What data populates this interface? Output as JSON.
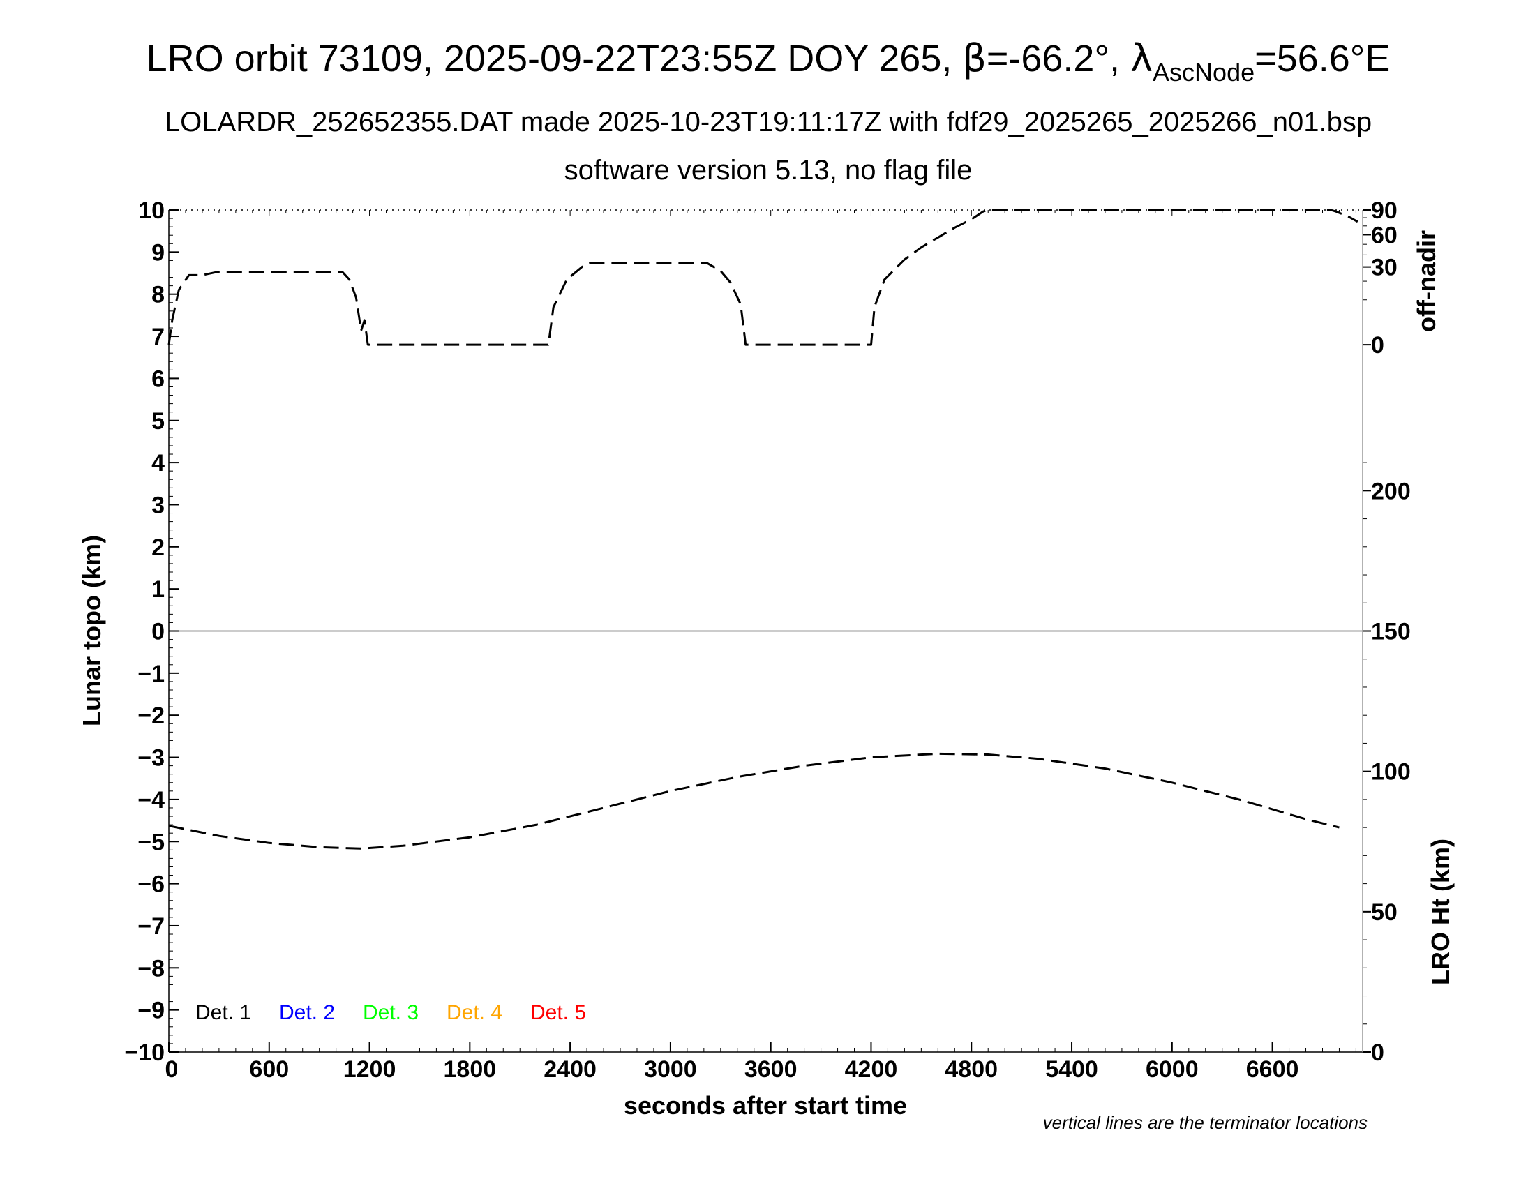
{
  "title": {
    "main_pre": "LRO orbit 73109, 2025-09-22T23:55Z DOY 265, ",
    "beta_symbol": "β",
    "beta_value": "=-66.2°, ",
    "lambda_symbol": "λ",
    "lambda_sub": "AscNode",
    "lambda_value": "=56.6°E",
    "line2": "LOLARDR_252652355.DAT made 2025-10-23T19:11:17Z with fdf29_2025265_2025266_n01.bsp",
    "line3": "software version 5.13, no flag file"
  },
  "footnote": "vertical lines are the terminator locations",
  "chart_data": {
    "type": "line",
    "xlabel": "seconds after start time",
    "xlim": [
      0,
      7140
    ],
    "x_ticks": [
      0,
      600,
      1200,
      1800,
      2400,
      3000,
      3600,
      4200,
      4800,
      5400,
      6000,
      6600
    ],
    "left_axis": {
      "label": "Lunar topo (km)",
      "ylim": [
        -10,
        10
      ],
      "ticks": [
        10,
        9,
        8,
        7,
        6,
        5,
        4,
        3,
        2,
        1,
        0,
        -1,
        -2,
        -3,
        -4,
        -5,
        -6,
        -7,
        -8,
        -9,
        -10
      ],
      "tick_labels": [
        "10",
        "9",
        "8",
        "7",
        "6",
        "5",
        "4",
        "3",
        "2",
        "1",
        "0",
        "−1",
        "−2",
        "−3",
        "−4",
        "−5",
        "−6",
        "−7",
        "−8",
        "−9",
        "−10"
      ]
    },
    "off_nadir_axis": {
      "label": "off-nadir",
      "ticks": [
        90,
        60,
        30,
        0
      ],
      "tick_labels": [
        "90",
        "60",
        "30",
        "0"
      ]
    },
    "lro_ht_axis": {
      "label": "LRO Ht (km)",
      "ylim": [
        0,
        300
      ],
      "ticks": [
        200,
        150,
        100,
        50,
        0
      ],
      "tick_labels": [
        "200",
        "150",
        "100",
        "50",
        "0"
      ]
    },
    "legend": {
      "placement": "bottom-left",
      "entries": [
        {
          "label": "Det. 1",
          "color": "#000000"
        },
        {
          "label": "Det. 2",
          "color": "#0000ff"
        },
        {
          "label": "Det. 3",
          "color": "#00ff00"
        },
        {
          "label": "Det. 4",
          "color": "#ffa500"
        },
        {
          "label": "Det. 5",
          "color": "#ff0000"
        }
      ]
    },
    "series": [
      {
        "color": "#000000",
        "style": "dashed",
        "axis": "off-nadir",
        "x": [
          0,
          20,
          60,
          120,
          200,
          240,
          280,
          600,
          1040,
          1080,
          1120,
          1150,
          1170,
          1190,
          1250,
          1800,
          2270,
          2300,
          2380,
          2480,
          2520,
          2600,
          3000,
          3220,
          3300,
          3360,
          3420,
          3450,
          3600,
          4000,
          4200,
          4220,
          4280,
          4400,
          4500,
          4600,
          4700,
          4800,
          4870,
          4900,
          5050,
          6600,
          6950,
          6980,
          7050,
          7110
        ],
        "y": [
          0,
          3,
          15,
          24,
          24,
          25,
          26,
          26,
          26,
          21,
          11,
          1,
          3,
          0,
          0,
          0,
          0,
          7,
          21,
          31,
          33,
          33,
          33,
          33,
          27,
          19,
          8,
          0,
          0,
          0,
          0,
          7,
          21,
          36,
          47,
          57,
          68,
          78,
          88,
          90,
          90,
          90,
          90,
          88,
          82,
          75
        ]
      },
      {
        "color": "#000000",
        "style": "dashed",
        "axis": "lro-ht",
        "x": [
          0,
          300,
          600,
          900,
          1150,
          1400,
          1800,
          2200,
          2600,
          3000,
          3400,
          3800,
          4200,
          4600,
          4900,
          5200,
          5600,
          6000,
          6400,
          6800,
          7000
        ],
        "y": [
          80.6,
          77.0,
          74.5,
          73.0,
          72.5,
          73.5,
          76.5,
          81.0,
          87.0,
          93.0,
          98.0,
          102.0,
          105.0,
          106.3,
          106.0,
          104.5,
          101.0,
          96.0,
          90.0,
          83.0,
          80.0
        ]
      }
    ]
  }
}
